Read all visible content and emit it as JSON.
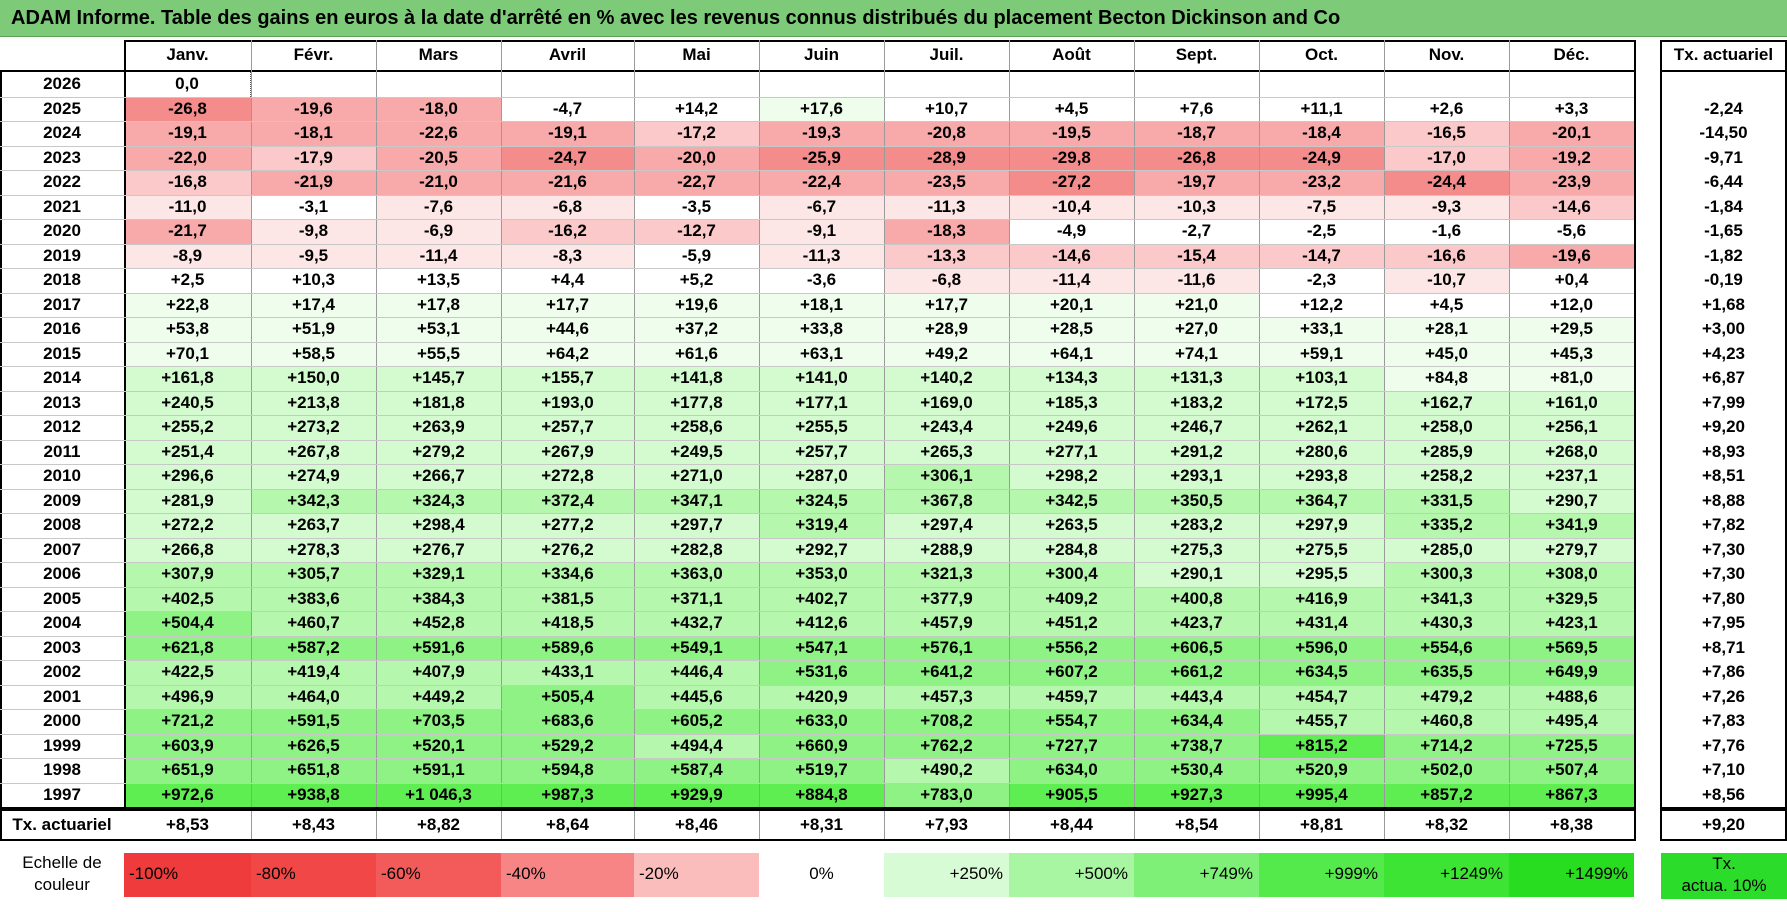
{
  "title": "ADAM Informe. Table des gains en euros à la date d'arrêté en % avec les revenus connus distribués du placement Becton Dickinson and Co",
  "months": [
    "Janv.",
    "Févr.",
    "Mars",
    "Avril",
    "Mai",
    "Juin",
    "Juil.",
    "Août",
    "Sept.",
    "Oct.",
    "Nov.",
    "Déc."
  ],
  "tx_header": "Tx. actuariel",
  "rows": [
    {
      "year": "2026",
      "values": [
        "0,0",
        "",
        "",
        "",
        "",
        "",
        "",
        "",
        "",
        "",
        "",
        ""
      ],
      "tx": ""
    },
    {
      "year": "2025",
      "values": [
        "-26,8",
        "-19,6",
        "-18,0",
        "-4,7",
        "+14,2",
        "+17,6",
        "+10,7",
        "+4,5",
        "+7,6",
        "+11,1",
        "+2,6",
        "+3,3"
      ],
      "tx": "-2,24"
    },
    {
      "year": "2024",
      "values": [
        "-19,1",
        "-18,1",
        "-22,6",
        "-19,1",
        "-17,2",
        "-19,3",
        "-20,8",
        "-19,5",
        "-18,7",
        "-18,4",
        "-16,5",
        "-20,1"
      ],
      "tx": "-14,50"
    },
    {
      "year": "2023",
      "values": [
        "-22,0",
        "-17,9",
        "-20,5",
        "-24,7",
        "-20,0",
        "-25,9",
        "-28,9",
        "-29,8",
        "-26,8",
        "-24,9",
        "-17,0",
        "-19,2"
      ],
      "tx": "-9,71"
    },
    {
      "year": "2022",
      "values": [
        "-16,8",
        "-21,9",
        "-21,0",
        "-21,6",
        "-22,7",
        "-22,4",
        "-23,5",
        "-27,2",
        "-19,7",
        "-23,2",
        "-24,4",
        "-23,9"
      ],
      "tx": "-6,44"
    },
    {
      "year": "2021",
      "values": [
        "-11,0",
        "-3,1",
        "-7,6",
        "-6,8",
        "-3,5",
        "-6,7",
        "-11,3",
        "-10,4",
        "-10,3",
        "-7,5",
        "-9,3",
        "-14,6"
      ],
      "tx": "-1,84"
    },
    {
      "year": "2020",
      "values": [
        "-21,7",
        "-9,8",
        "-6,9",
        "-16,2",
        "-12,7",
        "-9,1",
        "-18,3",
        "-4,9",
        "-2,7",
        "-2,5",
        "-1,6",
        "-5,6"
      ],
      "tx": "-1,65"
    },
    {
      "year": "2019",
      "values": [
        "-8,9",
        "-9,5",
        "-11,4",
        "-8,3",
        "-5,9",
        "-11,3",
        "-13,3",
        "-14,6",
        "-15,4",
        "-14,7",
        "-16,6",
        "-19,6"
      ],
      "tx": "-1,82"
    },
    {
      "year": "2018",
      "values": [
        "+2,5",
        "+10,3",
        "+13,5",
        "+4,4",
        "+5,2",
        "-3,6",
        "-6,8",
        "-11,4",
        "-11,6",
        "-2,3",
        "-10,7",
        "+0,4"
      ],
      "tx": "-0,19"
    },
    {
      "year": "2017",
      "values": [
        "+22,8",
        "+17,4",
        "+17,8",
        "+17,7",
        "+19,6",
        "+18,1",
        "+17,7",
        "+20,1",
        "+21,0",
        "+12,2",
        "+4,5",
        "+12,0"
      ],
      "tx": "+1,68"
    },
    {
      "year": "2016",
      "values": [
        "+53,8",
        "+51,9",
        "+53,1",
        "+44,6",
        "+37,2",
        "+33,8",
        "+28,9",
        "+28,5",
        "+27,0",
        "+33,1",
        "+28,1",
        "+29,5"
      ],
      "tx": "+3,00"
    },
    {
      "year": "2015",
      "values": [
        "+70,1",
        "+58,5",
        "+55,5",
        "+64,2",
        "+61,6",
        "+63,1",
        "+49,2",
        "+64,1",
        "+74,1",
        "+59,1",
        "+45,0",
        "+45,3"
      ],
      "tx": "+4,23"
    },
    {
      "year": "2014",
      "values": [
        "+161,8",
        "+150,0",
        "+145,7",
        "+155,7",
        "+141,8",
        "+141,0",
        "+140,2",
        "+134,3",
        "+131,3",
        "+103,1",
        "+84,8",
        "+81,0"
      ],
      "tx": "+6,87"
    },
    {
      "year": "2013",
      "values": [
        "+240,5",
        "+213,8",
        "+181,8",
        "+193,0",
        "+177,8",
        "+177,1",
        "+169,0",
        "+185,3",
        "+183,2",
        "+172,5",
        "+162,7",
        "+161,0"
      ],
      "tx": "+7,99"
    },
    {
      "year": "2012",
      "values": [
        "+255,2",
        "+273,2",
        "+263,9",
        "+257,7",
        "+258,6",
        "+255,5",
        "+243,4",
        "+249,6",
        "+246,7",
        "+262,1",
        "+258,0",
        "+256,1"
      ],
      "tx": "+9,20"
    },
    {
      "year": "2011",
      "values": [
        "+251,4",
        "+267,8",
        "+279,2",
        "+267,9",
        "+249,5",
        "+257,7",
        "+265,3",
        "+277,1",
        "+291,2",
        "+280,6",
        "+285,9",
        "+268,0"
      ],
      "tx": "+8,93"
    },
    {
      "year": "2010",
      "values": [
        "+296,6",
        "+274,9",
        "+266,7",
        "+272,8",
        "+271,0",
        "+287,0",
        "+306,1",
        "+298,2",
        "+293,1",
        "+293,8",
        "+258,2",
        "+237,1"
      ],
      "tx": "+8,51"
    },
    {
      "year": "2009",
      "values": [
        "+281,9",
        "+342,3",
        "+324,3",
        "+372,4",
        "+347,1",
        "+324,5",
        "+367,8",
        "+342,5",
        "+350,5",
        "+364,7",
        "+331,5",
        "+290,7"
      ],
      "tx": "+8,88"
    },
    {
      "year": "2008",
      "values": [
        "+272,2",
        "+263,7",
        "+298,4",
        "+277,2",
        "+297,7",
        "+319,4",
        "+297,4",
        "+263,5",
        "+283,2",
        "+297,9",
        "+335,2",
        "+341,9"
      ],
      "tx": "+7,82"
    },
    {
      "year": "2007",
      "values": [
        "+266,8",
        "+278,3",
        "+276,7",
        "+276,2",
        "+282,8",
        "+292,7",
        "+288,9",
        "+284,8",
        "+275,3",
        "+275,5",
        "+285,0",
        "+279,7"
      ],
      "tx": "+7,30"
    },
    {
      "year": "2006",
      "values": [
        "+307,9",
        "+305,7",
        "+329,1",
        "+334,6",
        "+363,0",
        "+353,0",
        "+321,3",
        "+300,4",
        "+290,1",
        "+295,5",
        "+300,3",
        "+308,0"
      ],
      "tx": "+7,30"
    },
    {
      "year": "2005",
      "values": [
        "+402,5",
        "+383,6",
        "+384,3",
        "+381,5",
        "+371,1",
        "+402,7",
        "+377,9",
        "+409,2",
        "+400,8",
        "+416,9",
        "+341,3",
        "+329,5"
      ],
      "tx": "+7,80"
    },
    {
      "year": "2004",
      "values": [
        "+504,4",
        "+460,7",
        "+452,8",
        "+418,5",
        "+432,7",
        "+412,6",
        "+457,9",
        "+451,2",
        "+423,7",
        "+431,4",
        "+430,3",
        "+423,1"
      ],
      "tx": "+7,95"
    },
    {
      "year": "2003",
      "values": [
        "+621,8",
        "+587,2",
        "+591,6",
        "+589,6",
        "+549,1",
        "+547,1",
        "+576,1",
        "+556,2",
        "+606,5",
        "+596,0",
        "+554,6",
        "+569,5"
      ],
      "tx": "+8,71"
    },
    {
      "year": "2002",
      "values": [
        "+422,5",
        "+419,4",
        "+407,9",
        "+433,1",
        "+446,4",
        "+531,6",
        "+641,2",
        "+607,2",
        "+661,2",
        "+634,5",
        "+635,5",
        "+649,9"
      ],
      "tx": "+7,86"
    },
    {
      "year": "2001",
      "values": [
        "+496,9",
        "+464,0",
        "+449,2",
        "+505,4",
        "+445,6",
        "+420,9",
        "+457,3",
        "+459,7",
        "+443,4",
        "+454,7",
        "+479,2",
        "+488,6"
      ],
      "tx": "+7,26"
    },
    {
      "year": "2000",
      "values": [
        "+721,2",
        "+591,5",
        "+703,5",
        "+683,6",
        "+605,2",
        "+633,0",
        "+708,2",
        "+554,7",
        "+634,4",
        "+455,7",
        "+460,8",
        "+495,4"
      ],
      "tx": "+7,83"
    },
    {
      "year": "1999",
      "values": [
        "+603,9",
        "+626,5",
        "+520,1",
        "+529,2",
        "+494,4",
        "+660,9",
        "+762,2",
        "+727,7",
        "+738,7",
        "+815,2",
        "+714,2",
        "+725,5"
      ],
      "tx": "+7,76"
    },
    {
      "year": "1998",
      "values": [
        "+651,9",
        "+651,8",
        "+591,1",
        "+594,8",
        "+587,4",
        "+519,7",
        "+490,2",
        "+634,0",
        "+530,4",
        "+520,9",
        "+502,0",
        "+507,4"
      ],
      "tx": "+7,10"
    },
    {
      "year": "1997",
      "values": [
        "+972,6",
        "+938,8",
        "+1 046,3",
        "+987,3",
        "+929,9",
        "+884,8",
        "+783,0",
        "+905,5",
        "+927,3",
        "+995,4",
        "+857,2",
        "+867,3"
      ],
      "tx": "+8,56"
    }
  ],
  "footer": {
    "label": "Tx. actuariel",
    "values": [
      "+8,53",
      "+8,43",
      "+8,82",
      "+8,64",
      "+8,46",
      "+8,31",
      "+7,93",
      "+8,44",
      "+8,54",
      "+8,81",
      "+8,32",
      "+8,38"
    ],
    "tx": "+9,20"
  },
  "legend": {
    "label": "Echelle de couleur",
    "items": [
      {
        "text": "-100%",
        "color": "#ef3b3b",
        "align": "left"
      },
      {
        "text": "-80%",
        "color": "#f14747",
        "align": "left"
      },
      {
        "text": "-60%",
        "color": "#f35b5b",
        "align": "left"
      },
      {
        "text": "-40%",
        "color": "#f78585",
        "align": "left"
      },
      {
        "text": "-20%",
        "color": "#fbbcbc",
        "align": "left"
      },
      {
        "text": "0%",
        "color": "#ffffff",
        "align": "center"
      },
      {
        "text": "+250%",
        "color": "#d7fbd4",
        "align": "right"
      },
      {
        "text": "+500%",
        "color": "#a8f5a2",
        "align": "right"
      },
      {
        "text": "+749%",
        "color": "#7ff077",
        "align": "right"
      },
      {
        "text": "+999%",
        "color": "#55ea4b",
        "align": "right"
      },
      {
        "text": "+1249%",
        "color": "#3de433",
        "align": "right"
      },
      {
        "text": "+1499%",
        "color": "#28dd1f",
        "align": "right"
      }
    ],
    "tx_label": "Tx. actua. 10%",
    "tx_color": "#2bdc2b"
  },
  "colors": {
    "title_bar": "#7dcb78",
    "negative_scale": [
      "#ffffff",
      "#fde6e6",
      "#fbc9c9",
      "#f8a9a9",
      "#f58c8c"
    ],
    "positive_scale": [
      "#ffffff",
      "#eefdec",
      "#d4fbcf",
      "#b6f7ae",
      "#8ef384",
      "#5fee52"
    ]
  }
}
